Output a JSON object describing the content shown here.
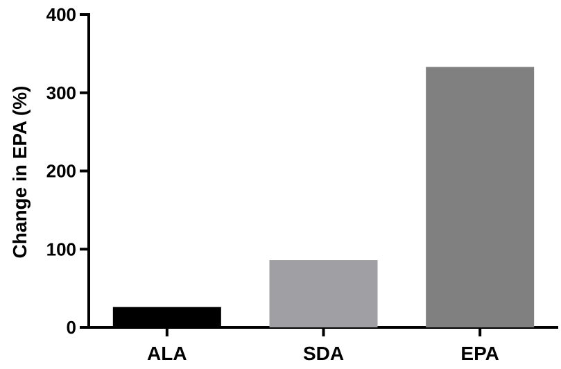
{
  "chart_data": {
    "type": "bar",
    "title": "",
    "xlabel": "",
    "ylabel": "Change in EPA (%)",
    "categories": [
      "ALA",
      "SDA",
      "EPA"
    ],
    "values": [
      26,
      86,
      333
    ],
    "ylim": [
      0,
      400
    ],
    "yticks": [
      0,
      100,
      200,
      300,
      400
    ],
    "colors": [
      "#000000",
      "#a0a0a4",
      "#808080"
    ],
    "grid": false,
    "legend": "none"
  }
}
